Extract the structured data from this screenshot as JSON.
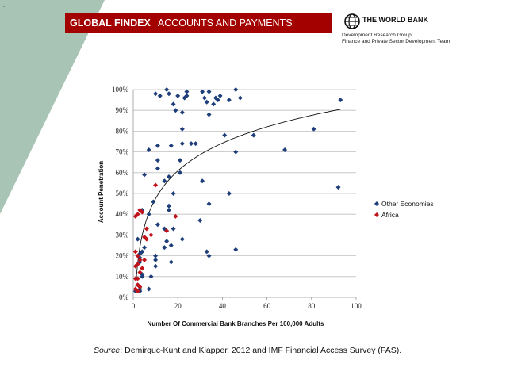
{
  "header": {
    "title_bold": "GLOBAL FINDEX",
    "title_rest": "ACCOUNTS AND PAYMENTS",
    "banner_color": "#a30000"
  },
  "corner_mark": ".",
  "logo": {
    "name": "THE WORLD BANK",
    "line1": "Development Research Group",
    "line2": "Finance and Private Sector Development Team",
    "icon": "globe-icon"
  },
  "chart_data": {
    "type": "scatter",
    "title": "",
    "xlabel": "Number Of Commercial Bank Branches Per 100,000 Adults",
    "ylabel": "Account Penetration",
    "xlim": [
      0,
      100
    ],
    "ylim": [
      0,
      100
    ],
    "x_ticks": [
      "0",
      "20",
      "40",
      "60",
      "80",
      "100"
    ],
    "y_ticks": [
      "0%",
      "10%",
      "20%",
      "30%",
      "40%",
      "50%",
      "60%",
      "70%",
      "80%",
      "90%",
      "100%"
    ],
    "grid": true,
    "legend_position": "right",
    "trendline": "logarithmic",
    "series": [
      {
        "name": "Other Economies",
        "color": "#1f3f7a",
        "points": [
          [
            10,
            98
          ],
          [
            12,
            97
          ],
          [
            15,
            100
          ],
          [
            16,
            98
          ],
          [
            18,
            93
          ],
          [
            19,
            90
          ],
          [
            20,
            97
          ],
          [
            22,
            89
          ],
          [
            23,
            96
          ],
          [
            24,
            99
          ],
          [
            24,
            97
          ],
          [
            31,
            99
          ],
          [
            32,
            96
          ],
          [
            33,
            94
          ],
          [
            34,
            99
          ],
          [
            34,
            88
          ],
          [
            36,
            93
          ],
          [
            37,
            96
          ],
          [
            38,
            95
          ],
          [
            39,
            97
          ],
          [
            43,
            95
          ],
          [
            46,
            100
          ],
          [
            48,
            96
          ],
          [
            93,
            95
          ],
          [
            81,
            81
          ],
          [
            54,
            78
          ],
          [
            41,
            78
          ],
          [
            22,
            81
          ],
          [
            68,
            71
          ],
          [
            46,
            70
          ],
          [
            7,
            71
          ],
          [
            11,
            73
          ],
          [
            17,
            73
          ],
          [
            22,
            74
          ],
          [
            26,
            74
          ],
          [
            28,
            74
          ],
          [
            21,
            66
          ],
          [
            11,
            66
          ],
          [
            11,
            62
          ],
          [
            92,
            53
          ],
          [
            5,
            59
          ],
          [
            14,
            56
          ],
          [
            16,
            58
          ],
          [
            21,
            60
          ],
          [
            31,
            56
          ],
          [
            18,
            50
          ],
          [
            43,
            50
          ],
          [
            34,
            45
          ],
          [
            9,
            46
          ],
          [
            16,
            44
          ],
          [
            16,
            42
          ],
          [
            3,
            42
          ],
          [
            4,
            42
          ],
          [
            7,
            40
          ],
          [
            30,
            37
          ],
          [
            11,
            35
          ],
          [
            14,
            33
          ],
          [
            18,
            33
          ],
          [
            22,
            28
          ],
          [
            15,
            27
          ],
          [
            17,
            25
          ],
          [
            2,
            28
          ],
          [
            5,
            24
          ],
          [
            4,
            22
          ],
          [
            14,
            24
          ],
          [
            33,
            22
          ],
          [
            34,
            20
          ],
          [
            46,
            23
          ],
          [
            10,
            20
          ],
          [
            10,
            18
          ],
          [
            17,
            17
          ],
          [
            3,
            21
          ],
          [
            3,
            19
          ],
          [
            3,
            17
          ],
          [
            4,
            11
          ],
          [
            4,
            10
          ],
          [
            8,
            10
          ],
          [
            10,
            15
          ],
          [
            7,
            4
          ],
          [
            3,
            3
          ],
          [
            3,
            4
          ],
          [
            1,
            3
          ],
          [
            2,
            6
          ]
        ]
      },
      {
        "name": "Africa",
        "color": "#c0141b",
        "points": [
          [
            10,
            54
          ],
          [
            19,
            39
          ],
          [
            3,
            42
          ],
          [
            4,
            41
          ],
          [
            2,
            40
          ],
          [
            1,
            39
          ],
          [
            6,
            33
          ],
          [
            8,
            30
          ],
          [
            5,
            29
          ],
          [
            6,
            28
          ],
          [
            15,
            32
          ],
          [
            1,
            22
          ],
          [
            2,
            20
          ],
          [
            3,
            18
          ],
          [
            5,
            18
          ],
          [
            2,
            16
          ],
          [
            1,
            15
          ],
          [
            4,
            14
          ],
          [
            3,
            12
          ],
          [
            2,
            9
          ],
          [
            1,
            9
          ],
          [
            2,
            6
          ],
          [
            3,
            5
          ],
          [
            1,
            4
          ],
          [
            2,
            3
          ]
        ]
      }
    ]
  },
  "source": {
    "label": "Source",
    "text": ": Demirguc-Kunt and Klapper, 2012 and IMF Financial Access Survey (FAS)."
  }
}
